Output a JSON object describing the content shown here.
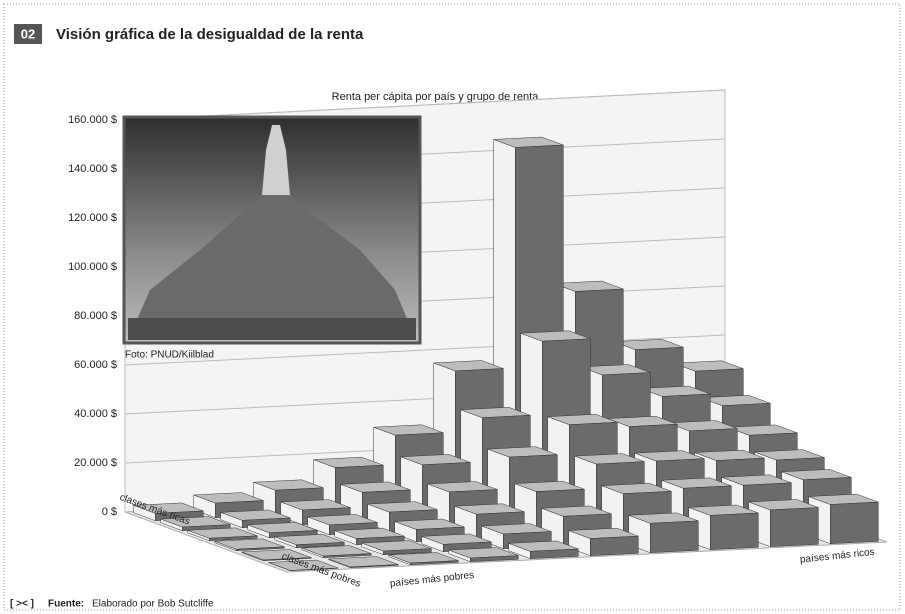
{
  "header": {
    "number": "02",
    "title": "Visión gráfica de la desigualdad de la renta"
  },
  "chart_data": {
    "type": "bar3d",
    "title": "Renta per cápita por país y grupo de renta",
    "categories": [
      null,
      null,
      null,
      null,
      null,
      null,
      null,
      null,
      null,
      null
    ],
    "x_start_label": "países más pobres",
    "x_end_label": "países más ricos",
    "z_start_label": "clases más ricas",
    "z_end_label": "clases más pobres",
    "series": [
      {
        "color": "#6b6b6b",
        "values": [
          3000,
          6000,
          10000,
          18000,
          30000,
          55000,
          145000,
          85000,
          60000,
          50000
        ]
      },
      {
        "color": "#6b6b6b",
        "values": [
          1500,
          3000,
          6000,
          12000,
          22000,
          40000,
          70000,
          55000,
          45000,
          40000
        ]
      },
      {
        "color": "#6b6b6b",
        "values": [
          1000,
          2000,
          4000,
          8000,
          15000,
          28000,
          40000,
          38000,
          35000,
          32000
        ]
      },
      {
        "color": "#6b6b6b",
        "values": [
          600,
          1200,
          2500,
          5000,
          10000,
          18000,
          28000,
          28000,
          27000,
          26000
        ]
      },
      {
        "color": "#6b6b6b",
        "values": [
          300,
          700,
          1500,
          3000,
          6000,
          12000,
          20000,
          21000,
          21000,
          22000
        ]
      },
      {
        "color": "#6b6b6b",
        "values": [
          100,
          300,
          700,
          1500,
          3000,
          7000,
          12000,
          14000,
          15000,
          16000
        ]
      }
    ],
    "ylim": [
      0,
      160000
    ],
    "yticks": [
      {
        "value": 0,
        "label": "0 $"
      },
      {
        "value": 20000,
        "label": "20.000 $"
      },
      {
        "value": 40000,
        "label": "40.000 $"
      },
      {
        "value": 60000,
        "label": "60.000 $"
      },
      {
        "value": 80000,
        "label": "80.000 $"
      },
      {
        "value": 100000,
        "label": "100.000 $"
      },
      {
        "value": 120000,
        "label": "120.000 $"
      },
      {
        "value": 140000,
        "label": "140.000 $"
      },
      {
        "value": 160000,
        "label": "160.000 $"
      }
    ],
    "grid": true
  },
  "photo_caption": "Foto: PNUD/Kiilblad",
  "source": {
    "icon": "[ >< ]",
    "label": "Fuente:",
    "text": "Elaborado por Bob Sutcliffe"
  }
}
